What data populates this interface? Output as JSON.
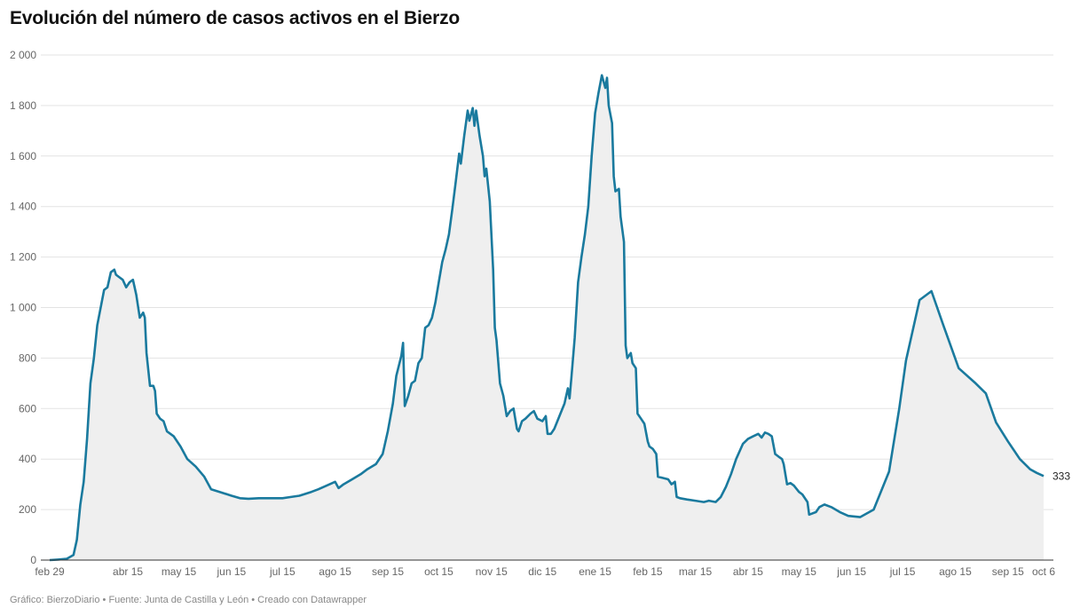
{
  "title": "Evolución del número de casos activos en el Bierzo",
  "footer": "Gráfico: BierzoDiario • Fuente: Junta de Castilla y León • Creado con Datawrapper",
  "colors": {
    "line": "#1a7a9e",
    "area": "#efefef",
    "grid": "#e3e3e3",
    "axis": "#333333"
  },
  "chart_data": {
    "type": "area",
    "title": "Evolución del número de casos activos en el Bierzo",
    "xlabel": "",
    "ylabel": "",
    "ylim": [
      0,
      2000
    ],
    "y_ticks": [
      0,
      200,
      400,
      600,
      800,
      1000,
      1200,
      1400,
      1600,
      1800,
      2000
    ],
    "y_tick_labels": [
      "0",
      "200",
      "400",
      "600",
      "800",
      "1 000",
      "1 200",
      "1 400",
      "1 600",
      "1 800",
      "2 000"
    ],
    "x_range": [
      "2020-02-29",
      "2021-10-06"
    ],
    "x_ticks": [
      {
        "date": "2020-02-29",
        "label": "feb 29"
      },
      {
        "date": "2020-04-15",
        "label": "abr 15"
      },
      {
        "date": "2020-05-15",
        "label": "may 15"
      },
      {
        "date": "2020-06-15",
        "label": "jun 15"
      },
      {
        "date": "2020-07-15",
        "label": "jul 15"
      },
      {
        "date": "2020-08-15",
        "label": "ago 15"
      },
      {
        "date": "2020-09-15",
        "label": "sep 15"
      },
      {
        "date": "2020-10-15",
        "label": "oct 15"
      },
      {
        "date": "2020-11-15",
        "label": "nov 15"
      },
      {
        "date": "2020-12-15",
        "label": "dic 15"
      },
      {
        "date": "2021-01-15",
        "label": "ene 15"
      },
      {
        "date": "2021-02-15",
        "label": "feb 15"
      },
      {
        "date": "2021-03-15",
        "label": "mar 15"
      },
      {
        "date": "2021-04-15",
        "label": "abr 15"
      },
      {
        "date": "2021-05-15",
        "label": "may 15"
      },
      {
        "date": "2021-06-15",
        "label": "jun 15"
      },
      {
        "date": "2021-07-15",
        "label": "jul 15"
      },
      {
        "date": "2021-08-15",
        "label": "ago 15"
      },
      {
        "date": "2021-09-15",
        "label": "sep 15"
      },
      {
        "date": "2021-10-06",
        "label": "oct 6"
      }
    ],
    "end_label": "333",
    "grid": true,
    "series": [
      {
        "points": [
          [
            "2020-02-29",
            0
          ],
          [
            "2020-03-05",
            2
          ],
          [
            "2020-03-10",
            5
          ],
          [
            "2020-03-14",
            20
          ],
          [
            "2020-03-16",
            80
          ],
          [
            "2020-03-18",
            220
          ],
          [
            "2020-03-20",
            310
          ],
          [
            "2020-03-22",
            480
          ],
          [
            "2020-03-24",
            700
          ],
          [
            "2020-03-26",
            800
          ],
          [
            "2020-03-28",
            930
          ],
          [
            "2020-04-01",
            1070
          ],
          [
            "2020-04-03",
            1080
          ],
          [
            "2020-04-05",
            1140
          ],
          [
            "2020-04-07",
            1150
          ],
          [
            "2020-04-08",
            1130
          ],
          [
            "2020-04-10",
            1120
          ],
          [
            "2020-04-12",
            1110
          ],
          [
            "2020-04-14",
            1080
          ],
          [
            "2020-04-16",
            1100
          ],
          [
            "2020-04-18",
            1110
          ],
          [
            "2020-04-19",
            1080
          ],
          [
            "2020-04-20",
            1050
          ],
          [
            "2020-04-22",
            960
          ],
          [
            "2020-04-24",
            980
          ],
          [
            "2020-04-25",
            960
          ],
          [
            "2020-04-26",
            820
          ],
          [
            "2020-04-28",
            690
          ],
          [
            "2020-04-30",
            690
          ],
          [
            "2020-05-01",
            670
          ],
          [
            "2020-05-02",
            580
          ],
          [
            "2020-05-04",
            560
          ],
          [
            "2020-05-06",
            550
          ],
          [
            "2020-05-08",
            510
          ],
          [
            "2020-05-12",
            490
          ],
          [
            "2020-05-16",
            450
          ],
          [
            "2020-05-20",
            400
          ],
          [
            "2020-05-25",
            370
          ],
          [
            "2020-05-30",
            330
          ],
          [
            "2020-06-03",
            280
          ],
          [
            "2020-06-08",
            270
          ],
          [
            "2020-06-15",
            255
          ],
          [
            "2020-06-20",
            245
          ],
          [
            "2020-06-25",
            243
          ],
          [
            "2020-07-01",
            245
          ],
          [
            "2020-07-10",
            245
          ],
          [
            "2020-07-15",
            245
          ],
          [
            "2020-07-20",
            250
          ],
          [
            "2020-07-25",
            255
          ],
          [
            "2020-08-01",
            270
          ],
          [
            "2020-08-05",
            280
          ],
          [
            "2020-08-10",
            295
          ],
          [
            "2020-08-15",
            310
          ],
          [
            "2020-08-17",
            285
          ],
          [
            "2020-08-20",
            300
          ],
          [
            "2020-08-25",
            320
          ],
          [
            "2020-08-30",
            340
          ],
          [
            "2020-09-03",
            360
          ],
          [
            "2020-09-08",
            380
          ],
          [
            "2020-09-12",
            420
          ],
          [
            "2020-09-15",
            510
          ],
          [
            "2020-09-18",
            620
          ],
          [
            "2020-09-20",
            730
          ],
          [
            "2020-09-23",
            810
          ],
          [
            "2020-09-24",
            860
          ],
          [
            "2020-09-25",
            610
          ],
          [
            "2020-09-27",
            650
          ],
          [
            "2020-09-29",
            700
          ],
          [
            "2020-10-01",
            710
          ],
          [
            "2020-10-03",
            780
          ],
          [
            "2020-10-05",
            800
          ],
          [
            "2020-10-07",
            920
          ],
          [
            "2020-10-09",
            930
          ],
          [
            "2020-10-11",
            960
          ],
          [
            "2020-10-13",
            1020
          ],
          [
            "2020-10-15",
            1100
          ],
          [
            "2020-10-17",
            1180
          ],
          [
            "2020-10-19",
            1230
          ],
          [
            "2020-10-21",
            1290
          ],
          [
            "2020-10-23",
            1390
          ],
          [
            "2020-10-25",
            1500
          ],
          [
            "2020-10-27",
            1610
          ],
          [
            "2020-10-28",
            1570
          ],
          [
            "2020-10-30",
            1680
          ],
          [
            "2020-11-01",
            1780
          ],
          [
            "2020-11-02",
            1740
          ],
          [
            "2020-11-04",
            1790
          ],
          [
            "2020-11-05",
            1720
          ],
          [
            "2020-11-06",
            1780
          ],
          [
            "2020-11-08",
            1680
          ],
          [
            "2020-11-10",
            1600
          ],
          [
            "2020-11-11",
            1520
          ],
          [
            "2020-11-12",
            1550
          ],
          [
            "2020-11-14",
            1420
          ],
          [
            "2020-11-16",
            1150
          ],
          [
            "2020-11-17",
            920
          ],
          [
            "2020-11-18",
            870
          ],
          [
            "2020-11-20",
            700
          ],
          [
            "2020-11-22",
            650
          ],
          [
            "2020-11-24",
            570
          ],
          [
            "2020-11-26",
            590
          ],
          [
            "2020-11-28",
            600
          ],
          [
            "2020-11-30",
            520
          ],
          [
            "2020-12-01",
            510
          ],
          [
            "2020-12-03",
            550
          ],
          [
            "2020-12-05",
            560
          ],
          [
            "2020-12-08",
            580
          ],
          [
            "2020-12-10",
            590
          ],
          [
            "2020-12-12",
            560
          ],
          [
            "2020-12-15",
            550
          ],
          [
            "2020-12-17",
            570
          ],
          [
            "2020-12-18",
            500
          ],
          [
            "2020-12-20",
            500
          ],
          [
            "2020-12-22",
            520
          ],
          [
            "2020-12-25",
            570
          ],
          [
            "2020-12-28",
            620
          ],
          [
            "2020-12-30",
            680
          ],
          [
            "2020-12-31",
            640
          ],
          [
            "2021-01-01",
            720
          ],
          [
            "2021-01-03",
            880
          ],
          [
            "2021-01-05",
            1100
          ],
          [
            "2021-01-07",
            1200
          ],
          [
            "2021-01-09",
            1290
          ],
          [
            "2021-01-11",
            1400
          ],
          [
            "2021-01-13",
            1600
          ],
          [
            "2021-01-15",
            1770
          ],
          [
            "2021-01-17",
            1850
          ],
          [
            "2021-01-19",
            1920
          ],
          [
            "2021-01-21",
            1870
          ],
          [
            "2021-01-22",
            1910
          ],
          [
            "2021-01-23",
            1800
          ],
          [
            "2021-01-25",
            1730
          ],
          [
            "2021-01-26",
            1520
          ],
          [
            "2021-01-27",
            1460
          ],
          [
            "2021-01-29",
            1470
          ],
          [
            "2021-01-30",
            1360
          ],
          [
            "2021-02-01",
            1260
          ],
          [
            "2021-02-02",
            850
          ],
          [
            "2021-02-03",
            800
          ],
          [
            "2021-02-05",
            820
          ],
          [
            "2021-02-06",
            780
          ],
          [
            "2021-02-08",
            760
          ],
          [
            "2021-02-09",
            580
          ],
          [
            "2021-02-11",
            560
          ],
          [
            "2021-02-13",
            540
          ],
          [
            "2021-02-15",
            470
          ],
          [
            "2021-02-16",
            450
          ],
          [
            "2021-02-18",
            440
          ],
          [
            "2021-02-20",
            420
          ],
          [
            "2021-02-21",
            330
          ],
          [
            "2021-02-24",
            325
          ],
          [
            "2021-02-27",
            320
          ],
          [
            "2021-03-01",
            300
          ],
          [
            "2021-03-03",
            310
          ],
          [
            "2021-03-04",
            250
          ],
          [
            "2021-03-06",
            245
          ],
          [
            "2021-03-10",
            240
          ],
          [
            "2021-03-15",
            235
          ],
          [
            "2021-03-20",
            230
          ],
          [
            "2021-03-23",
            235
          ],
          [
            "2021-03-27",
            230
          ],
          [
            "2021-03-30",
            250
          ],
          [
            "2021-04-02",
            290
          ],
          [
            "2021-04-05",
            340
          ],
          [
            "2021-04-08",
            400
          ],
          [
            "2021-04-12",
            460
          ],
          [
            "2021-04-15",
            480
          ],
          [
            "2021-04-18",
            490
          ],
          [
            "2021-04-21",
            500
          ],
          [
            "2021-04-23",
            485
          ],
          [
            "2021-04-25",
            505
          ],
          [
            "2021-04-27",
            500
          ],
          [
            "2021-04-29",
            490
          ],
          [
            "2021-05-01",
            420
          ],
          [
            "2021-05-03",
            410
          ],
          [
            "2021-05-05",
            400
          ],
          [
            "2021-05-06",
            380
          ],
          [
            "2021-05-08",
            300
          ],
          [
            "2021-05-10",
            305
          ],
          [
            "2021-05-12",
            295
          ],
          [
            "2021-05-15",
            270
          ],
          [
            "2021-05-17",
            260
          ],
          [
            "2021-05-20",
            230
          ],
          [
            "2021-05-21",
            180
          ],
          [
            "2021-05-25",
            190
          ],
          [
            "2021-05-27",
            210
          ],
          [
            "2021-05-30",
            220
          ],
          [
            "2021-06-03",
            210
          ],
          [
            "2021-06-08",
            190
          ],
          [
            "2021-06-13",
            175
          ],
          [
            "2021-06-20",
            170
          ],
          [
            "2021-06-28",
            200
          ],
          [
            "2021-07-07",
            350
          ],
          [
            "2021-07-13",
            600
          ],
          [
            "2021-07-17",
            790
          ],
          [
            "2021-07-25",
            1030
          ],
          [
            "2021-08-01",
            1065
          ],
          [
            "2021-08-08",
            930
          ],
          [
            "2021-08-17",
            760
          ],
          [
            "2021-08-27",
            700
          ],
          [
            "2021-09-02",
            660
          ],
          [
            "2021-09-08",
            545
          ],
          [
            "2021-09-15",
            470
          ],
          [
            "2021-09-22",
            400
          ],
          [
            "2021-09-28",
            360
          ],
          [
            "2021-10-02",
            345
          ],
          [
            "2021-10-06",
            333
          ]
        ]
      }
    ]
  }
}
